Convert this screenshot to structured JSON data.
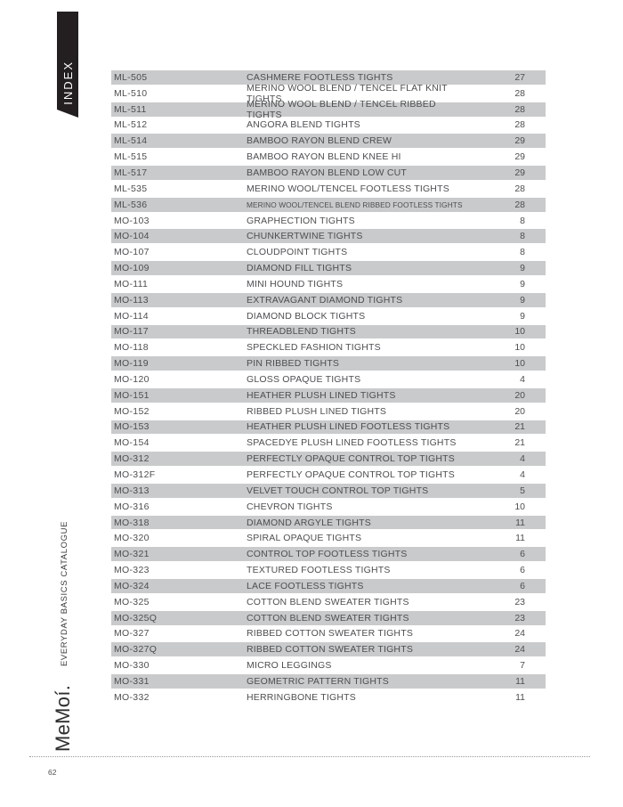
{
  "page": {
    "index_tab_label": "INDEX",
    "brand_logo": "MeMoí.",
    "catalogue_tagline": "EVERYDAY BASICS CATALOGUE",
    "page_number": "62"
  },
  "colors": {
    "tab_black": "#231f20",
    "row_gray": "#c9cacb",
    "text_gray": "#4d4e50"
  },
  "index_table": {
    "rows": [
      {
        "code": "ML-505",
        "description": "CASHMERE FOOTLESS TIGHTS",
        "page": "27"
      },
      {
        "code": "ML-510",
        "description": "MERINO WOOL BLEND / TENCEL FLAT KNIT TIGHTS",
        "page": "28"
      },
      {
        "code": "ML-511",
        "description": "MERINO WOOL BLEND / TENCEL RIBBED TIGHTS",
        "page": "28"
      },
      {
        "code": "ML-512",
        "description": "ANGORA BLEND TIGHTS",
        "page": "28"
      },
      {
        "code": "ML-514",
        "description": "BAMBOO RAYON BLEND CREW",
        "page": "29"
      },
      {
        "code": "ML-515",
        "description": "BAMBOO RAYON BLEND KNEE HI",
        "page": "29"
      },
      {
        "code": "ML-517",
        "description": "BAMBOO RAYON BLEND LOW CUT",
        "page": "29"
      },
      {
        "code": "ML-535",
        "description": "MERINO WOOL/TENCEL FOOTLESS TIGHTS",
        "page": "28"
      },
      {
        "code": "ML-536",
        "description": "MERINO WOOL/TENCEL BLEND RIBBED FOOTLESS TIGHTS",
        "page": "28",
        "condensed": true
      },
      {
        "code": "MO-103",
        "description": "GRAPHECTION TIGHTS",
        "page": "8"
      },
      {
        "code": "MO-104",
        "description": "CHUNKERTWINE TIGHTS",
        "page": "8"
      },
      {
        "code": "MO-107",
        "description": "CLOUDPOINT TIGHTS",
        "page": "8"
      },
      {
        "code": "MO-109",
        "description": "DIAMOND FILL TIGHTS",
        "page": "9"
      },
      {
        "code": "MO-111",
        "description": "MINI HOUND TIGHTS",
        "page": "9"
      },
      {
        "code": "MO-113",
        "description": "EXTRAVAGANT DIAMOND TIGHTS",
        "page": "9"
      },
      {
        "code": "MO-114",
        "description": "DIAMOND BLOCK TIGHTS",
        "page": "9"
      },
      {
        "code": "MO-117",
        "description": "THREADBLEND TIGHTS",
        "page": "10"
      },
      {
        "code": "MO-118",
        "description": "SPECKLED FASHION TIGHTS",
        "page": "10"
      },
      {
        "code": "MO-119",
        "description": "PIN RIBBED TIGHTS",
        "page": "10"
      },
      {
        "code": "MO-120",
        "description": "GLOSS OPAQUE TIGHTS",
        "page": "4"
      },
      {
        "code": "MO-151",
        "description": "HEATHER PLUSH LINED TIGHTS",
        "page": "20"
      },
      {
        "code": "MO-152",
        "description": "RIBBED PLUSH LINED TIGHTS",
        "page": "20"
      },
      {
        "code": "MO-153",
        "description": "HEATHER PLUSH LINED FOOTLESS TIGHTS",
        "page": "21"
      },
      {
        "code": "MO-154",
        "description": "SPACEDYE PLUSH LINED FOOTLESS TIGHTS",
        "page": "21"
      },
      {
        "code": "MO-312",
        "description": "PERFECTLY OPAQUE CONTROL TOP TIGHTS",
        "page": "4"
      },
      {
        "code": "MO-312F",
        "description": "PERFECTLY OPAQUE CONTROL TOP TIGHTS",
        "page": "4"
      },
      {
        "code": "MO-313",
        "description": "VELVET TOUCH CONTROL TOP TIGHTS",
        "page": "5"
      },
      {
        "code": "MO-316",
        "description": "CHEVRON TIGHTS",
        "page": "10"
      },
      {
        "code": "MO-318",
        "description": "DIAMOND ARGYLE TIGHTS",
        "page": "11"
      },
      {
        "code": "MO-320",
        "description": "SPIRAL OPAQUE TIGHTS",
        "page": "11"
      },
      {
        "code": "MO-321",
        "description": "CONTROL TOP FOOTLESS TIGHTS",
        "page": "6"
      },
      {
        "code": "MO-323",
        "description": "TEXTURED FOOTLESS TIGHTS",
        "page": "6"
      },
      {
        "code": "MO-324",
        "description": "LACE FOOTLESS TIGHTS",
        "page": "6"
      },
      {
        "code": "MO-325",
        "description": "COTTON BLEND SWEATER TIGHTS",
        "page": "23"
      },
      {
        "code": "MO-325Q",
        "description": "COTTON BLEND SWEATER TIGHTS",
        "page": "23"
      },
      {
        "code": "MO-327",
        "description": "RIBBED COTTON SWEATER TIGHTS",
        "page": "24"
      },
      {
        "code": "MO-327Q",
        "description": "RIBBED COTTON SWEATER TIGHTS",
        "page": "24"
      },
      {
        "code": "MO-330",
        "description": "MICRO LEGGINGS",
        "page": "7"
      },
      {
        "code": "MO-331",
        "description": "GEOMETRIC PATTERN TIGHTS",
        "page": "11"
      },
      {
        "code": "MO-332",
        "description": "HERRINGBONE TIGHTS",
        "page": "11"
      }
    ]
  }
}
